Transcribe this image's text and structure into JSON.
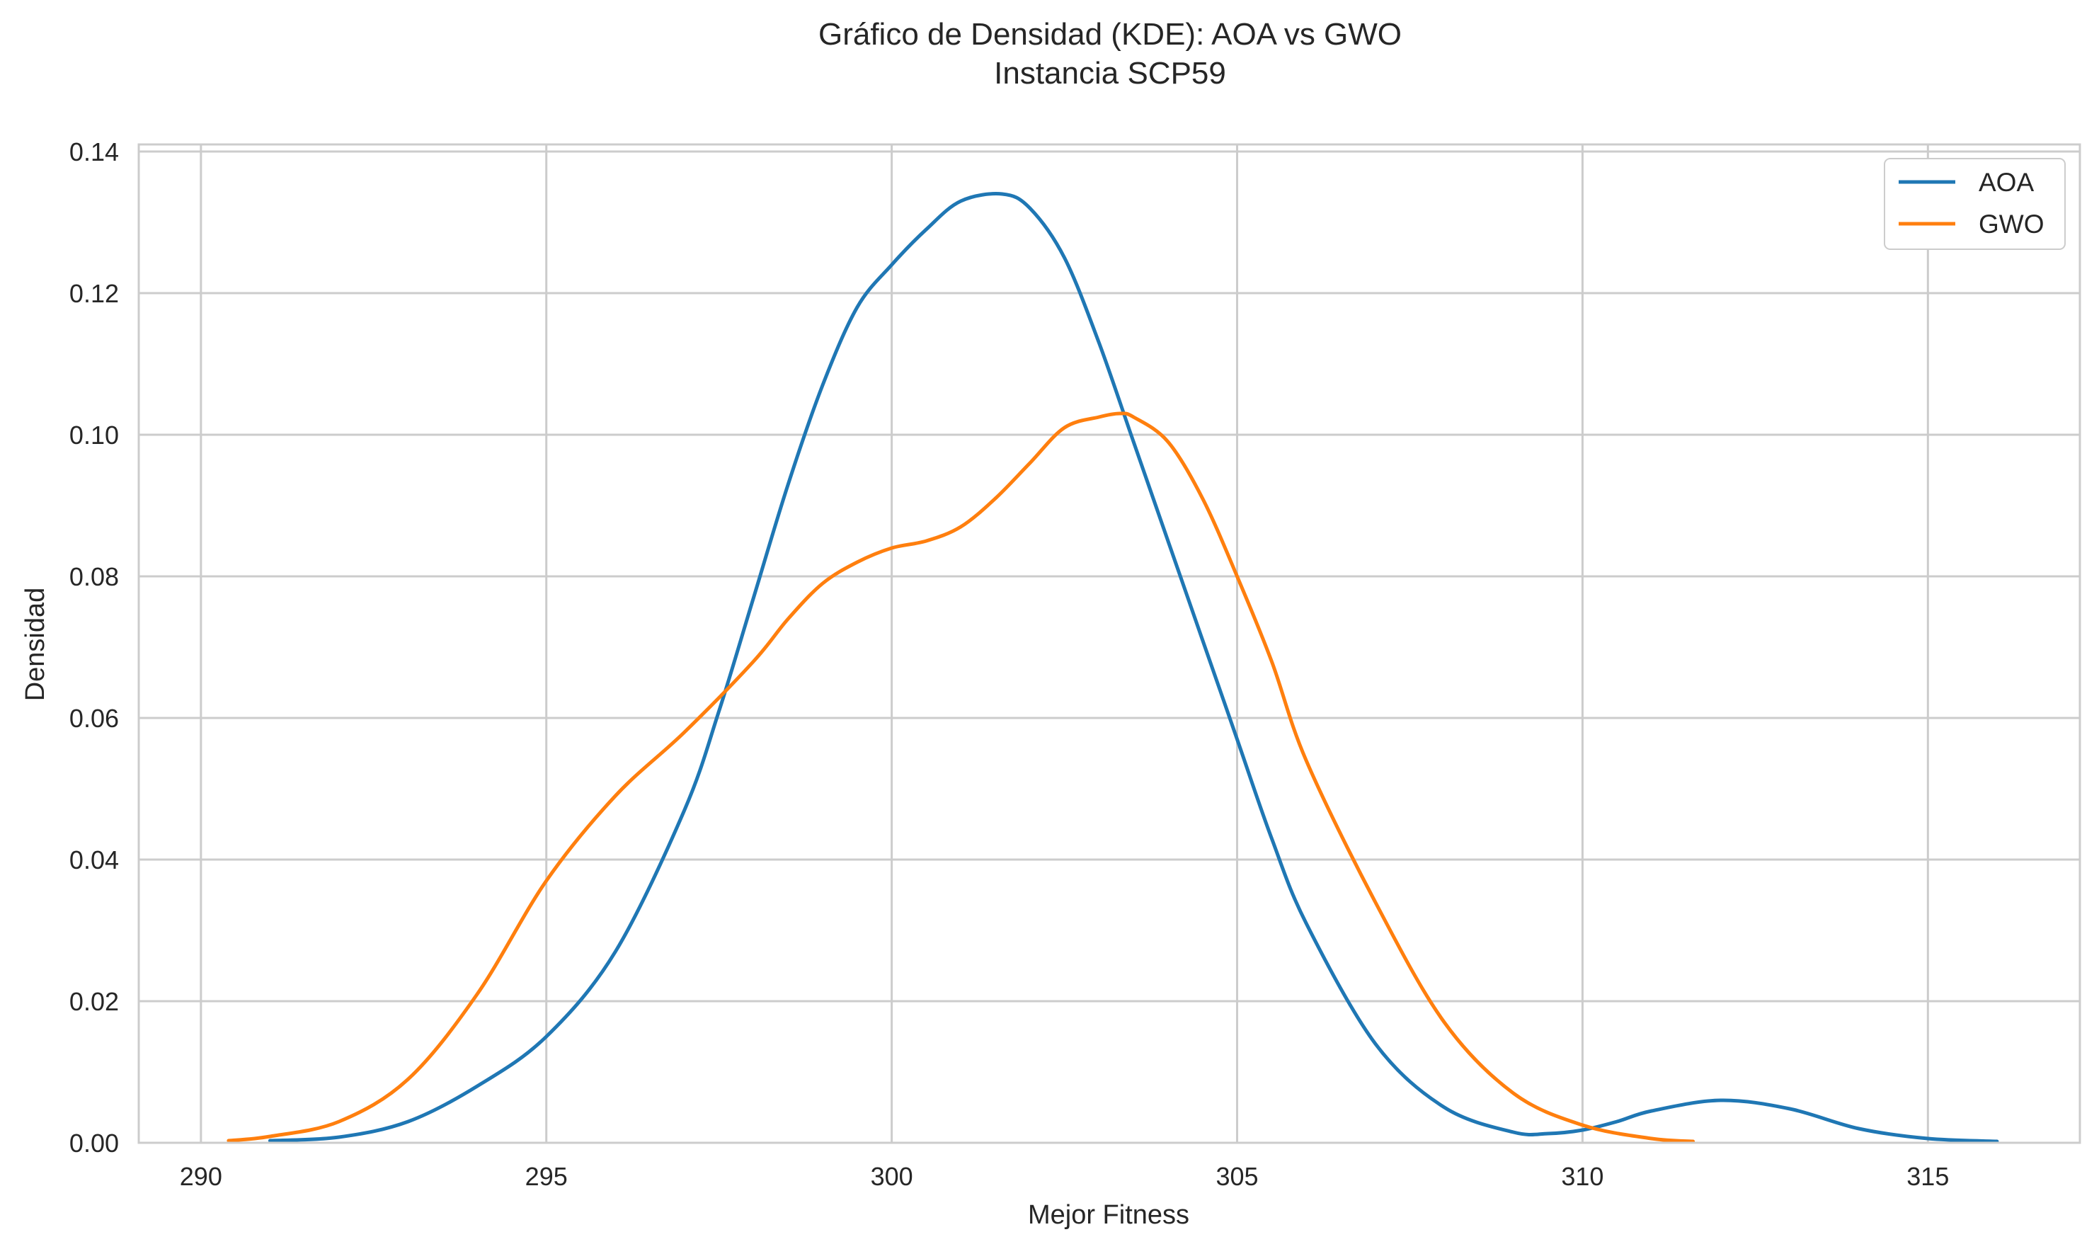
{
  "chart_data": {
    "type": "line",
    "title": "Gráfico de Densidad (KDE): AOA vs GWO",
    "subtitle": "Instancia SCP59",
    "xlabel": "Mejor Fitness",
    "ylabel": "Densidad",
    "xlim": [
      289.1,
      317.2
    ],
    "ylim": [
      0,
      0.141
    ],
    "xticks": [
      290,
      295,
      300,
      305,
      310,
      315
    ],
    "yticks": [
      0.0,
      0.02,
      0.04,
      0.06,
      0.08,
      0.1,
      0.12,
      0.14
    ],
    "xtick_labels": [
      "290",
      "295",
      "300",
      "305",
      "310",
      "315"
    ],
    "ytick_labels": [
      "0.00",
      "0.02",
      "0.04",
      "0.06",
      "0.08",
      "0.10",
      "0.12",
      "0.14"
    ],
    "grid": true,
    "legend_position": "top-right",
    "series": [
      {
        "name": "AOA",
        "color": "#1f77b4",
        "x": [
          291.0,
          292.0,
          293.0,
          294.0,
          295.0,
          296.0,
          297.0,
          297.5,
          298.0,
          298.5,
          299.0,
          299.5,
          300.0,
          300.5,
          301.0,
          301.6,
          302.0,
          302.5,
          303.0,
          303.5,
          304.0,
          304.5,
          305.0,
          305.5,
          306.0,
          307.0,
          308.0,
          309.0,
          309.5,
          310.0,
          310.5,
          311.0,
          312.0,
          313.0,
          314.0,
          315.0,
          316.0
        ],
        "y": [
          0.0003,
          0.0008,
          0.003,
          0.008,
          0.015,
          0.027,
          0.047,
          0.061,
          0.077,
          0.093,
          0.107,
          0.118,
          0.124,
          0.129,
          0.133,
          0.134,
          0.132,
          0.125,
          0.113,
          0.099,
          0.085,
          0.071,
          0.057,
          0.043,
          0.031,
          0.014,
          0.005,
          0.0015,
          0.0013,
          0.0018,
          0.003,
          0.0045,
          0.006,
          0.0048,
          0.002,
          0.0006,
          0.0002
        ]
      },
      {
        "name": "GWO",
        "color": "#ff7f0e",
        "x": [
          290.4,
          291.0,
          292.0,
          293.0,
          294.0,
          295.0,
          296.0,
          297.0,
          298.0,
          298.5,
          299.0,
          299.5,
          300.0,
          300.5,
          301.0,
          301.5,
          302.0,
          302.5,
          303.0,
          303.3,
          303.5,
          304.0,
          304.5,
          305.0,
          305.5,
          306.0,
          307.0,
          308.0,
          309.0,
          310.0,
          311.0,
          311.6
        ],
        "y": [
          0.0003,
          0.0009,
          0.003,
          0.009,
          0.021,
          0.037,
          0.049,
          0.058,
          0.068,
          0.074,
          0.079,
          0.082,
          0.084,
          0.085,
          0.087,
          0.091,
          0.096,
          0.101,
          0.1025,
          0.103,
          0.1025,
          0.099,
          0.091,
          0.08,
          0.068,
          0.054,
          0.034,
          0.017,
          0.007,
          0.0025,
          0.0006,
          0.0002
        ]
      }
    ]
  }
}
